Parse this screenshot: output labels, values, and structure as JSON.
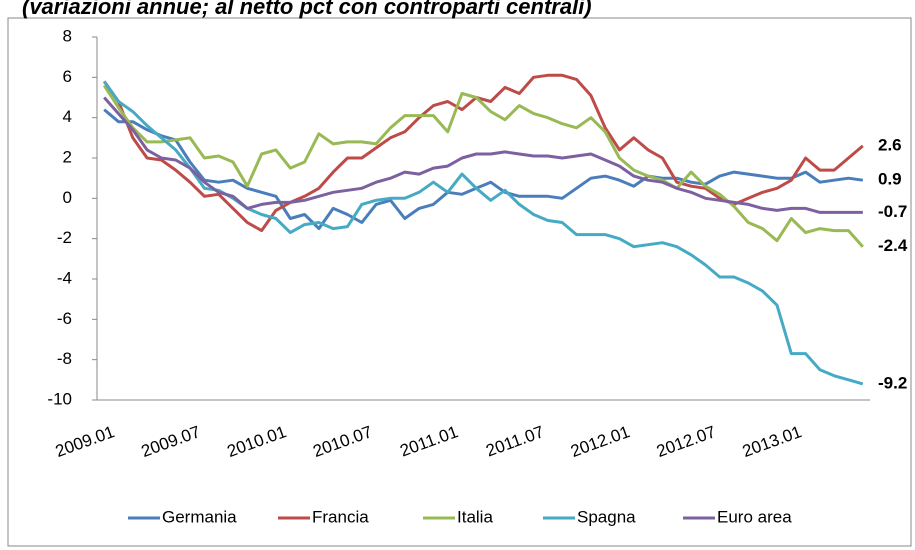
{
  "chart_data": {
    "type": "line",
    "title": "(variazioni annue; al netto pct con controparti centrali)",
    "categories": [
      "2009.01",
      null,
      null,
      null,
      null,
      null,
      "2009.07",
      null,
      null,
      null,
      null,
      null,
      "2010.01",
      null,
      null,
      null,
      null,
      null,
      "2010.07",
      null,
      null,
      null,
      null,
      null,
      "2011.01",
      null,
      null,
      null,
      null,
      null,
      "2011.07",
      null,
      null,
      null,
      null,
      null,
      "2012.01",
      null,
      null,
      null,
      null,
      null,
      "2012.07",
      null,
      null,
      null,
      null,
      null,
      "2013.01",
      null,
      null,
      null,
      null,
      null
    ],
    "series": [
      {
        "name": "Germania",
        "color": "#4a7ebb",
        "values": [
          4.4,
          3.8,
          3.8,
          3.4,
          3.1,
          2.9,
          1.8,
          0.9,
          0.8,
          0.9,
          0.5,
          0.3,
          0.1,
          -1.0,
          -0.8,
          -1.5,
          -0.5,
          -0.8,
          -1.2,
          -0.3,
          -0.1,
          -1.0,
          -0.5,
          -0.3,
          0.3,
          0.2,
          0.5,
          0.8,
          0.3,
          0.1,
          0.1,
          0.1,
          0.0,
          0.5,
          1.0,
          1.1,
          0.9,
          0.6,
          1.1,
          1.0,
          1.0,
          0.8,
          0.7,
          1.1,
          1.3,
          1.2,
          1.1,
          1.0,
          1.0,
          1.3,
          0.8,
          0.9,
          1.0,
          0.9
        ]
      },
      {
        "name": "Francia",
        "color": "#be4b48",
        "values": [
          5.8,
          4.8,
          3.0,
          2.0,
          1.9,
          1.4,
          0.8,
          0.1,
          0.2,
          -0.5,
          -1.2,
          -1.6,
          -0.6,
          -0.2,
          0.1,
          0.5,
          1.3,
          2.0,
          2.0,
          2.5,
          3.0,
          3.3,
          4.0,
          4.6,
          4.8,
          4.4,
          5.0,
          4.8,
          5.5,
          5.2,
          6.0,
          6.1,
          6.1,
          5.9,
          5.1,
          3.5,
          2.4,
          3.0,
          2.4,
          2.0,
          0.8,
          0.6,
          0.5,
          0.0,
          -0.3,
          0.0,
          0.3,
          0.5,
          0.9,
          2.0,
          1.4,
          1.4,
          2.0,
          2.6
        ]
      },
      {
        "name": "Italia",
        "color": "#98b954",
        "values": [
          5.6,
          4.5,
          3.5,
          2.8,
          2.8,
          2.9,
          3.0,
          2.0,
          2.1,
          1.8,
          0.6,
          2.2,
          2.4,
          1.5,
          1.8,
          3.2,
          2.7,
          2.8,
          2.8,
          2.7,
          3.5,
          4.1,
          4.1,
          4.1,
          3.3,
          5.2,
          5.0,
          4.3,
          3.9,
          4.6,
          4.2,
          4.0,
          3.7,
          3.5,
          4.0,
          3.3,
          2.0,
          1.4,
          1.1,
          0.9,
          0.5,
          1.3,
          0.6,
          0.2,
          -0.4,
          -1.2,
          -1.5,
          -2.1,
          -1.0,
          -1.7,
          -1.5,
          -1.6,
          -1.6,
          -2.4
        ]
      },
      {
        "name": "Spagna",
        "color": "#46aac5",
        "values": [
          5.8,
          4.8,
          4.3,
          3.6,
          3.0,
          2.4,
          1.5,
          0.5,
          0.4,
          0.0,
          -0.5,
          -0.8,
          -1.0,
          -1.7,
          -1.3,
          -1.2,
          -1.5,
          -1.4,
          -0.3,
          -0.1,
          0.0,
          0.0,
          0.3,
          0.8,
          0.3,
          1.2,
          0.5,
          -0.1,
          0.4,
          -0.3,
          -0.8,
          -1.1,
          -1.2,
          -1.8,
          -1.8,
          -1.8,
          -2.0,
          -2.4,
          -2.3,
          -2.2,
          -2.4,
          -2.8,
          -3.3,
          -3.9,
          -3.9,
          -4.2,
          -4.6,
          -5.3,
          -7.7,
          -7.7,
          -8.5,
          -8.8,
          -9.0,
          -9.2
        ]
      },
      {
        "name": "Euro area",
        "color": "#7d60a0",
        "values": [
          5.0,
          4.2,
          3.4,
          2.4,
          2.0,
          1.9,
          1.5,
          0.8,
          0.3,
          0.1,
          -0.5,
          -0.3,
          -0.2,
          -0.2,
          -0.1,
          0.1,
          0.3,
          0.4,
          0.5,
          0.8,
          1.0,
          1.3,
          1.2,
          1.5,
          1.6,
          2.0,
          2.2,
          2.2,
          2.3,
          2.2,
          2.1,
          2.1,
          2.0,
          2.1,
          2.2,
          1.9,
          1.6,
          1.1,
          0.9,
          0.8,
          0.5,
          0.3,
          0.0,
          -0.1,
          -0.2,
          -0.3,
          -0.5,
          -0.6,
          -0.5,
          -0.5,
          -0.7,
          -0.7,
          -0.7,
          -0.7
        ]
      }
    ],
    "ylim": [
      -10,
      8
    ],
    "yticks": [
      -10,
      -8,
      -6,
      -4,
      -2,
      0,
      2,
      4,
      6,
      8
    ],
    "grid": false,
    "legend": "bottom"
  }
}
